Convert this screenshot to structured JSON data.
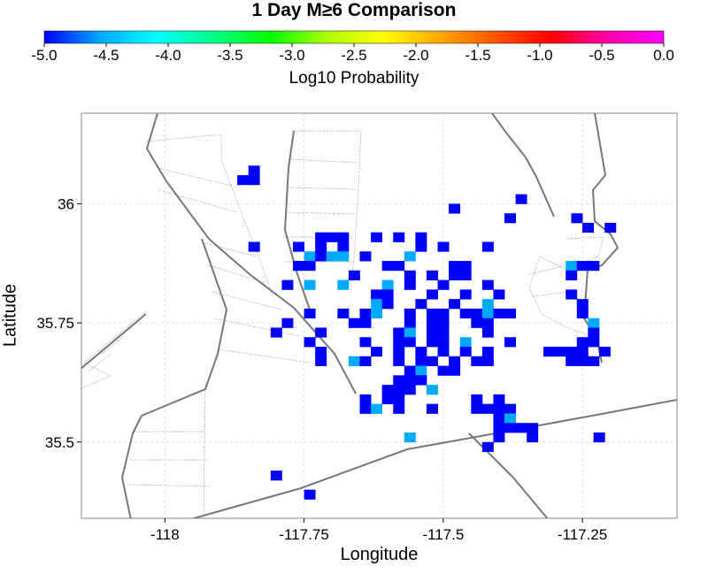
{
  "chart_data": {
    "type": "heatmap",
    "title": "1 Day M≥6 Comparison",
    "xlabel": "Longitude",
    "ylabel": "Latitude",
    "xlim": [
      -118.15,
      -117.08
    ],
    "ylim": [
      35.34,
      36.19
    ],
    "x_ticks": [
      -118,
      -117.75,
      -117.5,
      -117.25
    ],
    "x_tick_labels": [
      "-118",
      "-117.75",
      "-117.5",
      "-117.25"
    ],
    "y_ticks": [
      35.5,
      35.75,
      36
    ],
    "y_tick_labels": [
      "35.5",
      "35.75",
      "36"
    ],
    "grid": true,
    "colorbar": {
      "label": "Log10 Probability",
      "range": [
        -5.0,
        0.0
      ],
      "ticks": [
        -5.0,
        -4.5,
        -4.0,
        -3.5,
        -3.0,
        -2.5,
        -2.0,
        -1.5,
        -1.0,
        -0.5,
        0.0
      ],
      "tick_labels": [
        "-5.0",
        "-4.5",
        "-4.0",
        "-3.5",
        "-3.0",
        "-2.5",
        "-2.0",
        "-1.5",
        "-1.0",
        "-0.5",
        "0.0"
      ],
      "colors": [
        "#0000ff",
        "#00aaff",
        "#00ffff",
        "#00ff88",
        "#00ff00",
        "#aaff00",
        "#ffff00",
        "#ffaa00",
        "#ff5500",
        "#ff0000",
        "#ff00aa",
        "#ff00ff"
      ]
    },
    "cell_size_deg": 0.02,
    "cells": [
      {
        "lon": -117.84,
        "lat": 36.05,
        "v": -5.0
      },
      {
        "lon": -117.86,
        "lat": 36.05,
        "v": -5.0
      },
      {
        "lon": -117.84,
        "lat": 36.07,
        "v": -5.0
      },
      {
        "lon": -117.36,
        "lat": 36.01,
        "v": -5.0
      },
      {
        "lon": -117.48,
        "lat": 35.99,
        "v": -5.0
      },
      {
        "lon": -117.38,
        "lat": 35.97,
        "v": -5.0
      },
      {
        "lon": -117.26,
        "lat": 35.97,
        "v": -5.0
      },
      {
        "lon": -117.24,
        "lat": 35.95,
        "v": -5.0
      },
      {
        "lon": -117.2,
        "lat": 35.95,
        "v": -5.0
      },
      {
        "lon": -117.84,
        "lat": 35.91,
        "v": -5.0
      },
      {
        "lon": -117.76,
        "lat": 35.91,
        "v": -5.0
      },
      {
        "lon": -117.72,
        "lat": 35.93,
        "v": -5.0
      },
      {
        "lon": -117.7,
        "lat": 35.93,
        "v": -5.0
      },
      {
        "lon": -117.68,
        "lat": 35.93,
        "v": -5.0
      },
      {
        "lon": -117.72,
        "lat": 35.91,
        "v": -5.0
      },
      {
        "lon": -117.68,
        "lat": 35.91,
        "v": -5.0
      },
      {
        "lon": -117.74,
        "lat": 35.89,
        "v": -4.5
      },
      {
        "lon": -117.72,
        "lat": 35.89,
        "v": -5.0
      },
      {
        "lon": -117.7,
        "lat": 35.89,
        "v": -4.5
      },
      {
        "lon": -117.68,
        "lat": 35.89,
        "v": -4.5
      },
      {
        "lon": -117.76,
        "lat": 35.87,
        "v": -5.0
      },
      {
        "lon": -117.74,
        "lat": 35.87,
        "v": -5.0
      },
      {
        "lon": -117.62,
        "lat": 35.93,
        "v": -5.0
      },
      {
        "lon": -117.58,
        "lat": 35.93,
        "v": -5.0
      },
      {
        "lon": -117.54,
        "lat": 35.93,
        "v": -5.0
      },
      {
        "lon": -117.54,
        "lat": 35.91,
        "v": -5.0
      },
      {
        "lon": -117.5,
        "lat": 35.91,
        "v": -5.0
      },
      {
        "lon": -117.42,
        "lat": 35.91,
        "v": -5.0
      },
      {
        "lon": -117.64,
        "lat": 35.89,
        "v": -5.0
      },
      {
        "lon": -117.56,
        "lat": 35.89,
        "v": -4.5
      },
      {
        "lon": -117.58,
        "lat": 35.87,
        "v": -5.0
      },
      {
        "lon": -117.6,
        "lat": 35.87,
        "v": -5.0
      },
      {
        "lon": -117.48,
        "lat": 35.87,
        "v": -5.0
      },
      {
        "lon": -117.46,
        "lat": 35.87,
        "v": -5.0
      },
      {
        "lon": -117.66,
        "lat": 35.85,
        "v": -5.0
      },
      {
        "lon": -117.56,
        "lat": 35.85,
        "v": -5.0
      },
      {
        "lon": -117.52,
        "lat": 35.85,
        "v": -5.0
      },
      {
        "lon": -117.48,
        "lat": 35.85,
        "v": -5.0
      },
      {
        "lon": -117.46,
        "lat": 35.85,
        "v": -5.0
      },
      {
        "lon": -117.68,
        "lat": 35.83,
        "v": -4.5
      },
      {
        "lon": -117.6,
        "lat": 35.83,
        "v": -4.5
      },
      {
        "lon": -117.56,
        "lat": 35.83,
        "v": -5.0
      },
      {
        "lon": -117.5,
        "lat": 35.83,
        "v": -5.0
      },
      {
        "lon": -117.42,
        "lat": 35.83,
        "v": -5.0
      },
      {
        "lon": -117.62,
        "lat": 35.81,
        "v": -5.0
      },
      {
        "lon": -117.6,
        "lat": 35.81,
        "v": -5.0
      },
      {
        "lon": -117.52,
        "lat": 35.81,
        "v": -5.0
      },
      {
        "lon": -117.46,
        "lat": 35.81,
        "v": -5.0
      },
      {
        "lon": -117.4,
        "lat": 35.81,
        "v": -5.0
      },
      {
        "lon": -117.62,
        "lat": 35.79,
        "v": -4.5
      },
      {
        "lon": -117.6,
        "lat": 35.79,
        "v": -5.0
      },
      {
        "lon": -117.54,
        "lat": 35.79,
        "v": -5.0
      },
      {
        "lon": -117.48,
        "lat": 35.79,
        "v": -5.0
      },
      {
        "lon": -117.42,
        "lat": 35.79,
        "v": -4.5
      },
      {
        "lon": -117.64,
        "lat": 35.77,
        "v": -5.0
      },
      {
        "lon": -117.62,
        "lat": 35.77,
        "v": -4.5
      },
      {
        "lon": -117.56,
        "lat": 35.77,
        "v": -5.0
      },
      {
        "lon": -117.52,
        "lat": 35.77,
        "v": -5.0
      },
      {
        "lon": -117.5,
        "lat": 35.77,
        "v": -5.0
      },
      {
        "lon": -117.46,
        "lat": 35.77,
        "v": -5.0
      },
      {
        "lon": -117.44,
        "lat": 35.77,
        "v": -5.0
      },
      {
        "lon": -117.42,
        "lat": 35.77,
        "v": -4.5
      },
      {
        "lon": -117.4,
        "lat": 35.77,
        "v": -5.0
      },
      {
        "lon": -117.38,
        "lat": 35.77,
        "v": -5.0
      },
      {
        "lon": -117.68,
        "lat": 35.77,
        "v": -5.0
      },
      {
        "lon": -117.66,
        "lat": 35.75,
        "v": -5.0
      },
      {
        "lon": -117.64,
        "lat": 35.75,
        "v": -5.0
      },
      {
        "lon": -117.56,
        "lat": 35.75,
        "v": -5.0
      },
      {
        "lon": -117.52,
        "lat": 35.75,
        "v": -5.0
      },
      {
        "lon": -117.5,
        "lat": 35.75,
        "v": -5.0
      },
      {
        "lon": -117.44,
        "lat": 35.75,
        "v": -5.0
      },
      {
        "lon": -117.42,
        "lat": 35.75,
        "v": -5.0
      },
      {
        "lon": -117.58,
        "lat": 35.73,
        "v": -5.0
      },
      {
        "lon": -117.56,
        "lat": 35.73,
        "v": -4.5
      },
      {
        "lon": -117.52,
        "lat": 35.73,
        "v": -5.0
      },
      {
        "lon": -117.5,
        "lat": 35.73,
        "v": -5.0
      },
      {
        "lon": -117.42,
        "lat": 35.73,
        "v": -5.0
      },
      {
        "lon": -117.64,
        "lat": 35.71,
        "v": -5.0
      },
      {
        "lon": -117.58,
        "lat": 35.71,
        "v": -5.0
      },
      {
        "lon": -117.56,
        "lat": 35.71,
        "v": -5.0
      },
      {
        "lon": -117.52,
        "lat": 35.71,
        "v": -5.0
      },
      {
        "lon": -117.5,
        "lat": 35.71,
        "v": -5.0
      },
      {
        "lon": -117.46,
        "lat": 35.71,
        "v": -4.5
      },
      {
        "lon": -117.38,
        "lat": 35.71,
        "v": -5.0
      },
      {
        "lon": -117.62,
        "lat": 35.69,
        "v": -5.0
      },
      {
        "lon": -117.58,
        "lat": 35.69,
        "v": -5.0
      },
      {
        "lon": -117.54,
        "lat": 35.69,
        "v": -5.0
      },
      {
        "lon": -117.5,
        "lat": 35.69,
        "v": -5.0
      },
      {
        "lon": -117.46,
        "lat": 35.69,
        "v": -5.0
      },
      {
        "lon": -117.42,
        "lat": 35.69,
        "v": -5.0
      },
      {
        "lon": -117.66,
        "lat": 35.67,
        "v": -4.5
      },
      {
        "lon": -117.64,
        "lat": 35.67,
        "v": -5.0
      },
      {
        "lon": -117.58,
        "lat": 35.67,
        "v": -5.0
      },
      {
        "lon": -117.54,
        "lat": 35.67,
        "v": -5.0
      },
      {
        "lon": -117.52,
        "lat": 35.67,
        "v": -5.0
      },
      {
        "lon": -117.48,
        "lat": 35.67,
        "v": -5.0
      },
      {
        "lon": -117.44,
        "lat": 35.67,
        "v": -5.0
      },
      {
        "lon": -117.42,
        "lat": 35.67,
        "v": -5.0
      },
      {
        "lon": -117.56,
        "lat": 35.65,
        "v": -5.0
      },
      {
        "lon": -117.54,
        "lat": 35.65,
        "v": -4.5
      },
      {
        "lon": -117.5,
        "lat": 35.65,
        "v": -5.0
      },
      {
        "lon": -117.48,
        "lat": 35.65,
        "v": -5.0
      },
      {
        "lon": -117.58,
        "lat": 35.63,
        "v": -5.0
      },
      {
        "lon": -117.56,
        "lat": 35.63,
        "v": -5.0
      },
      {
        "lon": -117.54,
        "lat": 35.63,
        "v": -5.0
      },
      {
        "lon": -117.6,
        "lat": 35.61,
        "v": -5.0
      },
      {
        "lon": -117.58,
        "lat": 35.61,
        "v": -5.0
      },
      {
        "lon": -117.56,
        "lat": 35.61,
        "v": -5.0
      },
      {
        "lon": -117.52,
        "lat": 35.61,
        "v": -4.5
      },
      {
        "lon": -117.64,
        "lat": 35.59,
        "v": -5.0
      },
      {
        "lon": -117.6,
        "lat": 35.59,
        "v": -5.0
      },
      {
        "lon": -117.58,
        "lat": 35.59,
        "v": -5.0
      },
      {
        "lon": -117.44,
        "lat": 35.59,
        "v": -5.0
      },
      {
        "lon": -117.4,
        "lat": 35.59,
        "v": -5.0
      },
      {
        "lon": -117.64,
        "lat": 35.57,
        "v": -5.0
      },
      {
        "lon": -117.62,
        "lat": 35.57,
        "v": -4.5
      },
      {
        "lon": -117.58,
        "lat": 35.57,
        "v": -5.0
      },
      {
        "lon": -117.52,
        "lat": 35.57,
        "v": -5.0
      },
      {
        "lon": -117.44,
        "lat": 35.57,
        "v": -5.0
      },
      {
        "lon": -117.42,
        "lat": 35.57,
        "v": -5.0
      },
      {
        "lon": -117.4,
        "lat": 35.57,
        "v": -5.0
      },
      {
        "lon": -117.38,
        "lat": 35.57,
        "v": -5.0
      },
      {
        "lon": -117.4,
        "lat": 35.55,
        "v": -5.0
      },
      {
        "lon": -117.38,
        "lat": 35.55,
        "v": -4.5
      },
      {
        "lon": -117.4,
        "lat": 35.53,
        "v": -5.0
      },
      {
        "lon": -117.38,
        "lat": 35.53,
        "v": -5.0
      },
      {
        "lon": -117.36,
        "lat": 35.53,
        "v": -5.0
      },
      {
        "lon": -117.34,
        "lat": 35.53,
        "v": -5.0
      },
      {
        "lon": -117.4,
        "lat": 35.51,
        "v": -5.0
      },
      {
        "lon": -117.34,
        "lat": 35.51,
        "v": -5.0
      },
      {
        "lon": -117.56,
        "lat": 35.51,
        "v": -4.5
      },
      {
        "lon": -117.42,
        "lat": 35.49,
        "v": -5.0
      },
      {
        "lon": -117.22,
        "lat": 35.51,
        "v": -5.0
      },
      {
        "lon": -117.78,
        "lat": 35.83,
        "v": -5.0
      },
      {
        "lon": -117.78,
        "lat": 35.75,
        "v": -5.0
      },
      {
        "lon": -117.8,
        "lat": 35.73,
        "v": -5.0
      },
      {
        "lon": -117.74,
        "lat": 35.83,
        "v": -4.5
      },
      {
        "lon": -117.74,
        "lat": 35.77,
        "v": -5.0
      },
      {
        "lon": -117.74,
        "lat": 35.71,
        "v": -5.0
      },
      {
        "lon": -117.72,
        "lat": 35.69,
        "v": -5.0
      },
      {
        "lon": -117.72,
        "lat": 35.73,
        "v": -5.0
      },
      {
        "lon": -117.72,
        "lat": 35.67,
        "v": -5.0
      },
      {
        "lon": -117.8,
        "lat": 35.43,
        "v": -5.0
      },
      {
        "lon": -117.74,
        "lat": 35.39,
        "v": -5.0
      },
      {
        "lon": -117.27,
        "lat": 35.87,
        "v": -4.5
      },
      {
        "lon": -117.27,
        "lat": 35.85,
        "v": -5.0
      },
      {
        "lon": -117.25,
        "lat": 35.87,
        "v": -5.0
      },
      {
        "lon": -117.23,
        "lat": 35.87,
        "v": -5.0
      },
      {
        "lon": -117.27,
        "lat": 35.81,
        "v": -5.0
      },
      {
        "lon": -117.25,
        "lat": 35.79,
        "v": -5.0
      },
      {
        "lon": -117.25,
        "lat": 35.77,
        "v": -5.0
      },
      {
        "lon": -117.23,
        "lat": 35.75,
        "v": -4.5
      },
      {
        "lon": -117.23,
        "lat": 35.73,
        "v": -5.0
      },
      {
        "lon": -117.23,
        "lat": 35.71,
        "v": -5.0
      },
      {
        "lon": -117.25,
        "lat": 35.71,
        "v": -5.0
      },
      {
        "lon": -117.29,
        "lat": 35.69,
        "v": -5.0
      },
      {
        "lon": -117.27,
        "lat": 35.69,
        "v": -5.0
      },
      {
        "lon": -117.25,
        "lat": 35.69,
        "v": -5.0
      },
      {
        "lon": -117.21,
        "lat": 35.69,
        "v": -5.0
      },
      {
        "lon": -117.27,
        "lat": 35.67,
        "v": -5.0
      },
      {
        "lon": -117.25,
        "lat": 35.67,
        "v": -5.0
      },
      {
        "lon": -117.23,
        "lat": 35.67,
        "v": -5.0
      },
      {
        "lon": -117.31,
        "lat": 35.69,
        "v": -5.0
      }
    ]
  }
}
